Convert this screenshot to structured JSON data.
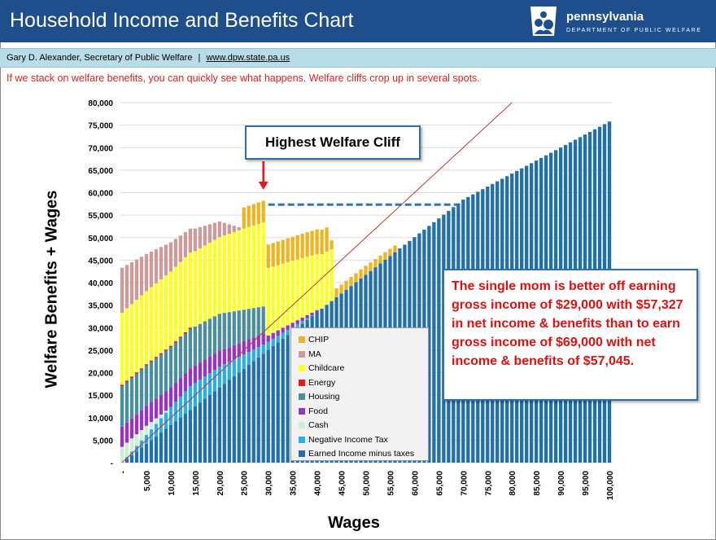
{
  "header": {
    "title": "Household Income and Benefits Chart",
    "logo_name": "pennsylvania",
    "logo_dept": "DEPARTMENT OF PUBLIC WELFARE"
  },
  "subheader": {
    "author": "Gary D. Alexander,  Secretary of Public Welfare",
    "separator": "|",
    "link": "www.dpw.state.pa.us"
  },
  "intro_text": "If we stack on welfare benefits, you can quickly see what happens. Welfare cliffs crop up in several spots.",
  "annotations": {
    "cliff_label": "Highest Welfare Cliff",
    "callout": "The single mom is better off earning gross income of $29,000 with $57,327 in net income & benefits than to earn gross income of $69,000 with net income & benefits of $57,045."
  },
  "colors": {
    "earned": "#1f6fb4",
    "negtax": "#2aaee6",
    "cash": "#cdeed0",
    "food": "#9a32c8",
    "housing": "#4a8fa0",
    "energy": "#e41a1a",
    "childcare": "#ffff22",
    "ma": "#cf9a9a",
    "chip": "#f2b321",
    "diagonal": "#c0392b",
    "cliff_arrow": "#e41a1a",
    "cliff_dash": "#2e75b6",
    "header_bg": "#1f4e8c",
    "callout_text": "#e01010"
  },
  "chart_data": {
    "type": "bar",
    "stacked": true,
    "xlabel": "Wages",
    "ylabel": "Welfare Benefits + Wages",
    "ylim": [
      0,
      80000
    ],
    "xlim": [
      0,
      100000
    ],
    "x_step": 1000,
    "y_ticks": [
      "-",
      "5,000",
      "10,000",
      "15,000",
      "20,000",
      "25,000",
      "30,000",
      "35,000",
      "40,000",
      "45,000",
      "50,000",
      "55,000",
      "60,000",
      "65,000",
      "70,000",
      "75,000",
      "80,000"
    ],
    "x_ticks": [
      "-",
      "5,000",
      "10,000",
      "15,000",
      "20,000",
      "25,000",
      "30,000",
      "35,000",
      "40,000",
      "45,000",
      "50,000",
      "55,000",
      "60,000",
      "65,000",
      "70,000",
      "75,000",
      "80,000",
      "85,000",
      "90,000",
      "95,000",
      "100,000"
    ],
    "legend": [
      "CHIP",
      "MA",
      "Childcare",
      "Energy",
      "Housing",
      "Food",
      "Cash",
      "Negative Income Tax",
      "Earned Income minus taxes"
    ],
    "legend_position": "center",
    "series": [
      {
        "name": "Earned Income minus taxes",
        "key": "earned",
        "description": "net earnings rising roughly linearly from 0 to about 75,800 at $100,000 wages"
      },
      {
        "name": "Negative Income Tax",
        "key": "negtax",
        "points": [
          [
            0,
            0
          ],
          [
            10000,
            4000
          ],
          [
            14000,
            5300
          ],
          [
            20000,
            4600
          ],
          [
            29000,
            2000
          ],
          [
            40000,
            0
          ]
        ]
      },
      {
        "name": "Cash",
        "key": "cash",
        "points": [
          [
            0,
            3500
          ],
          [
            5000,
            2000
          ],
          [
            8000,
            800
          ],
          [
            10000,
            0
          ]
        ]
      },
      {
        "name": "Food",
        "key": "food",
        "points": [
          [
            0,
            4500
          ],
          [
            10000,
            4300
          ],
          [
            20000,
            3500
          ],
          [
            29000,
            2500
          ],
          [
            30000,
            1400
          ],
          [
            40000,
            500
          ],
          [
            41000,
            0
          ]
        ]
      },
      {
        "name": "Housing",
        "key": "housing",
        "points": [
          [
            0,
            9000
          ],
          [
            10000,
            9000
          ],
          [
            20000,
            8300
          ],
          [
            29000,
            6000
          ],
          [
            30000,
            0
          ]
        ]
      },
      {
        "name": "Energy",
        "key": "energy",
        "points": [
          [
            0,
            300
          ],
          [
            14000,
            300
          ],
          [
            15000,
            0
          ]
        ]
      },
      {
        "name": "Childcare",
        "key": "childcare",
        "points": [
          [
            0,
            16000
          ],
          [
            10000,
            16500
          ],
          [
            20000,
            17000
          ],
          [
            25000,
            18000
          ],
          [
            29000,
            18700
          ],
          [
            30000,
            15000
          ],
          [
            38000,
            13000
          ],
          [
            43000,
            11500
          ],
          [
            44000,
            0
          ]
        ]
      },
      {
        "name": "MA",
        "key": "ma",
        "points": [
          [
            0,
            10000
          ],
          [
            10000,
            6500
          ],
          [
            20000,
            3500
          ],
          [
            25000,
            0
          ]
        ]
      },
      {
        "name": "CHIP",
        "key": "chip",
        "points": [
          [
            0,
            0
          ],
          [
            24000,
            0
          ],
          [
            25000,
            4700
          ],
          [
            29000,
            4800
          ],
          [
            30000,
            5200
          ],
          [
            40000,
            5500
          ],
          [
            42000,
            5400
          ],
          [
            43000,
            2000
          ],
          [
            50000,
            2000
          ],
          [
            56000,
            1500
          ],
          [
            57000,
            0
          ]
        ]
      }
    ],
    "total_check": {
      "wage_29000_total": 57327,
      "wage_69000_total": 57045
    }
  }
}
